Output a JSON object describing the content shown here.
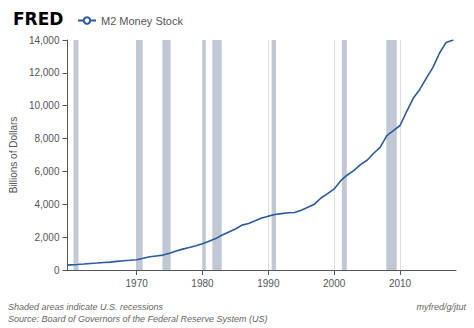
{
  "chart_data": {
    "type": "line",
    "title": "FRED",
    "ylabel": "Billions of Dollars",
    "legend": "top",
    "grid": "x",
    "series": [
      {
        "name": "M2 Money Stock",
        "color": "#2a5aa0",
        "x": [
          1959.5,
          1960,
          1961,
          1962,
          1963,
          1964,
          1965,
          1966,
          1967,
          1968,
          1969,
          1970,
          1971,
          1972,
          1973,
          1974,
          1975,
          1976,
          1977,
          1978,
          1979,
          1980,
          1981,
          1982,
          1983,
          1984,
          1985,
          1986,
          1987,
          1988,
          1989,
          1990,
          1991,
          1992,
          1993,
          1994,
          1995,
          1996,
          1997,
          1998,
          1999,
          2000,
          2001,
          2002,
          2003,
          2004,
          2005,
          2006,
          2007,
          2008,
          2009,
          2010,
          2011,
          2012,
          2013,
          2014,
          2015,
          2016,
          2017,
          2018.1
        ],
        "values": [
          297,
          312,
          336,
          363,
          394,
          425,
          459,
          480,
          524,
          566,
          590,
          627,
          710,
          802,
          855,
          908,
          1016,
          1152,
          1270,
          1366,
          1474,
          1600,
          1756,
          1910,
          2127,
          2310,
          2496,
          2732,
          2833,
          2995,
          3159,
          3278,
          3380,
          3433,
          3483,
          3499,
          3642,
          3820,
          4006,
          4381,
          4644,
          4938,
          5439,
          5784,
          6065,
          6415,
          6680,
          7108,
          7480,
          8177,
          8488,
          8796,
          9637,
          10452,
          10993,
          11682,
          12337,
          13208,
          13851,
          14000
        ]
      }
    ],
    "recessions": {
      "color": "#c0c8d4",
      "ranges": [
        [
          1960.417,
          1961.167
        ],
        [
          1969.917,
          1970.917
        ],
        [
          1973.917,
          1975.167
        ],
        [
          1980.0,
          1980.5
        ],
        [
          1981.5,
          1982.917
        ],
        [
          1990.5,
          1991.167
        ],
        [
          2001.167,
          2001.917
        ],
        [
          2007.917,
          2009.5
        ]
      ]
    },
    "xlim": [
      1959.5,
      2018.5
    ],
    "xticks": [
      1970,
      1980,
      1990,
      2000,
      2010
    ],
    "ylim": [
      0,
      14000
    ],
    "yticks": [
      0,
      {
        "value": 2000,
        "label": "2,000"
      },
      {
        "value": 4000,
        "label": "4,000"
      },
      {
        "value": 6000,
        "label": "6,000"
      },
      {
        "value": 8000,
        "label": "8,000"
      },
      {
        "value": 10000,
        "label": "10,000"
      },
      {
        "value": 12000,
        "label": "12,000"
      },
      {
        "value": 14000,
        "label": "14,000"
      }
    ],
    "annotations": [
      "Shaded areas indicate U.S. recessions",
      "Source: Board of Governors of the Federal Reserve System (US)",
      "myfred/g/jtut"
    ]
  }
}
